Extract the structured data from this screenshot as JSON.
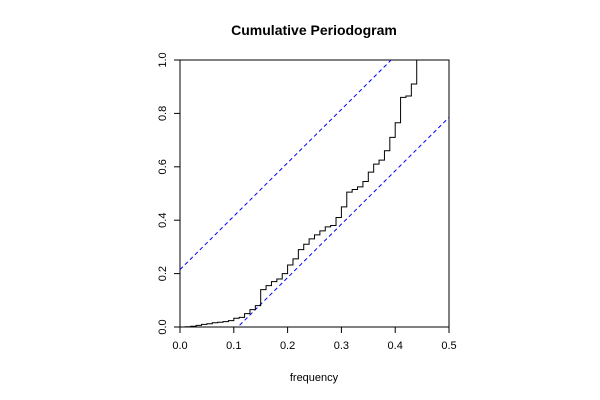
{
  "chart_data": {
    "type": "line",
    "title": "Cumulative Periodogram",
    "xlabel": "frequency",
    "ylabel": "",
    "xlim": [
      0.0,
      0.5
    ],
    "ylim": [
      0.0,
      1.0
    ],
    "xticks": [
      "0.0",
      "0.1",
      "0.2",
      "0.3",
      "0.4",
      "0.5"
    ],
    "yticks": [
      "0.0",
      "0.2",
      "0.4",
      "0.6",
      "0.8",
      "1.0"
    ],
    "grid": false,
    "series": [
      {
        "style": "step",
        "color": "#000000",
        "x": [
          0.0,
          0.01,
          0.02,
          0.03,
          0.04,
          0.05,
          0.06,
          0.07,
          0.08,
          0.09,
          0.1,
          0.11,
          0.12,
          0.13,
          0.14,
          0.15,
          0.16,
          0.17,
          0.18,
          0.19,
          0.2,
          0.21,
          0.22,
          0.23,
          0.24,
          0.25,
          0.26,
          0.27,
          0.28,
          0.29,
          0.3,
          0.31,
          0.32,
          0.33,
          0.34,
          0.35,
          0.36,
          0.37,
          0.38,
          0.39,
          0.4,
          0.41,
          0.42,
          0.43,
          0.44,
          0.45,
          0.46,
          0.47,
          0.48
        ],
        "y": [
          0.0,
          0.001,
          0.003,
          0.006,
          0.01,
          0.012,
          0.016,
          0.018,
          0.02,
          0.024,
          0.033,
          0.036,
          0.05,
          0.065,
          0.08,
          0.14,
          0.155,
          0.17,
          0.18,
          0.2,
          0.232,
          0.255,
          0.29,
          0.31,
          0.33,
          0.345,
          0.36,
          0.375,
          0.38,
          0.41,
          0.45,
          0.505,
          0.515,
          0.525,
          0.545,
          0.58,
          0.61,
          0.625,
          0.66,
          0.71,
          0.765,
          0.86,
          0.865,
          0.91,
          1.0,
          1.0,
          1.0,
          1.0,
          1.0
        ]
      }
    ],
    "reference_lines": [
      {
        "style": "dashed",
        "color": "#0000ff",
        "x0": 0.0,
        "y0": 0.215,
        "x1": 0.5,
        "y1": 1.215
      },
      {
        "style": "dashed",
        "color": "#0000ff",
        "x0": 0.0,
        "y0": -0.215,
        "x1": 0.5,
        "y1": 0.785
      }
    ]
  }
}
